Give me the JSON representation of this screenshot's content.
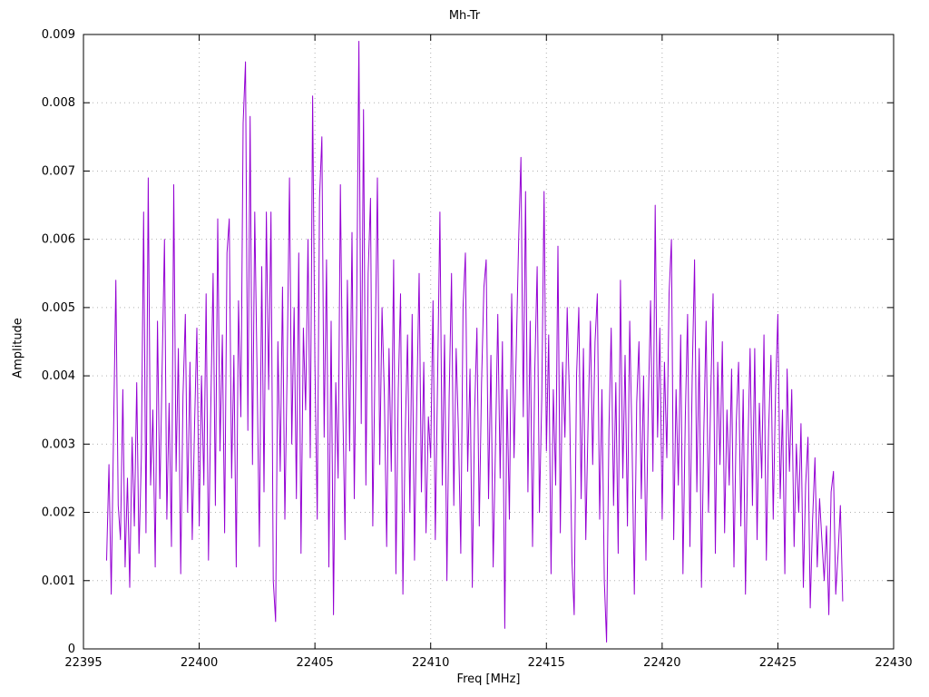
{
  "chart_data": {
    "type": "line",
    "title": "Mh-Tr",
    "xlabel": "Freq [MHz]",
    "ylabel": "Amplitude",
    "xlim": [
      22395,
      22430
    ],
    "ylim": [
      0,
      0.009
    ],
    "xticks": [
      22395,
      22400,
      22405,
      22410,
      22415,
      22420,
      22425,
      22430
    ],
    "yticks": [
      0,
      0.001,
      0.002,
      0.003,
      0.004,
      0.005,
      0.006,
      0.007,
      0.008,
      0.009
    ],
    "grid": true,
    "legend": "none",
    "line_color": "#9400d3",
    "series_name": "Mh-Tr",
    "x_start": 22396.0,
    "x_step": 0.1,
    "values": [
      0.0013,
      0.0027,
      0.0008,
      0.0032,
      0.0054,
      0.0021,
      0.0016,
      0.0038,
      0.0012,
      0.0025,
      0.0009,
      0.0031,
      0.0018,
      0.0039,
      0.0014,
      0.0028,
      0.0064,
      0.0017,
      0.0069,
      0.0024,
      0.0035,
      0.0012,
      0.0048,
      0.0022,
      0.0041,
      0.006,
      0.0019,
      0.0036,
      0.0015,
      0.0068,
      0.0026,
      0.0044,
      0.0011,
      0.0037,
      0.0049,
      0.002,
      0.0042,
      0.0016,
      0.0033,
      0.0047,
      0.0018,
      0.004,
      0.0024,
      0.0052,
      0.0013,
      0.0035,
      0.0055,
      0.0021,
      0.0063,
      0.0029,
      0.0046,
      0.0017,
      0.0058,
      0.0063,
      0.0025,
      0.0043,
      0.0012,
      0.0051,
      0.0034,
      0.0077,
      0.0086,
      0.0032,
      0.0078,
      0.0027,
      0.0064,
      0.004,
      0.0015,
      0.0056,
      0.0023,
      0.0064,
      0.0038,
      0.0064,
      0.001,
      0.0004,
      0.0045,
      0.0026,
      0.0053,
      0.0019,
      0.0041,
      0.0069,
      0.003,
      0.005,
      0.0022,
      0.0058,
      0.0014,
      0.0047,
      0.0035,
      0.006,
      0.0028,
      0.0081,
      0.0042,
      0.0019,
      0.0066,
      0.0075,
      0.0031,
      0.0057,
      0.0012,
      0.0048,
      0.0005,
      0.0039,
      0.0025,
      0.0068,
      0.0036,
      0.0016,
      0.0054,
      0.0029,
      0.0061,
      0.0022,
      0.0049,
      0.0089,
      0.0033,
      0.0079,
      0.0024,
      0.0055,
      0.0066,
      0.0018,
      0.0043,
      0.0069,
      0.0027,
      0.005,
      0.0037,
      0.0015,
      0.0044,
      0.0026,
      0.0057,
      0.0011,
      0.0038,
      0.0052,
      0.0008,
      0.0031,
      0.0046,
      0.002,
      0.0049,
      0.0013,
      0.0036,
      0.0055,
      0.0023,
      0.0042,
      0.0017,
      0.0034,
      0.0028,
      0.0051,
      0.0016,
      0.004,
      0.0064,
      0.0024,
      0.0046,
      0.001,
      0.0037,
      0.0055,
      0.0021,
      0.0044,
      0.0032,
      0.0014,
      0.005,
      0.0058,
      0.0026,
      0.0041,
      0.0009,
      0.0035,
      0.0047,
      0.0018,
      0.0039,
      0.0053,
      0.0057,
      0.0022,
      0.0043,
      0.0012,
      0.003,
      0.0049,
      0.0025,
      0.0045,
      0.0003,
      0.0038,
      0.0019,
      0.0052,
      0.0028,
      0.0044,
      0.006,
      0.0072,
      0.0034,
      0.0067,
      0.0023,
      0.0048,
      0.0015,
      0.0041,
      0.0056,
      0.002,
      0.0037,
      0.0067,
      0.0029,
      0.0046,
      0.0011,
      0.0038,
      0.0024,
      0.0059,
      0.0017,
      0.0042,
      0.0031,
      0.005,
      0.0036,
      0.0013,
      0.0005,
      0.004,
      0.005,
      0.0022,
      0.0044,
      0.0016,
      0.0033,
      0.0048,
      0.0027,
      0.0045,
      0.0052,
      0.0019,
      0.0038,
      0.001,
      0.0001,
      0.0032,
      0.0047,
      0.0021,
      0.0039,
      0.0014,
      0.0054,
      0.0025,
      0.0043,
      0.0018,
      0.0048,
      0.003,
      0.0008,
      0.0036,
      0.0045,
      0.0022,
      0.004,
      0.0013,
      0.0035,
      0.0051,
      0.0026,
      0.0065,
      0.0031,
      0.0047,
      0.0019,
      0.0042,
      0.0028,
      0.0052,
      0.006,
      0.0016,
      0.0038,
      0.0024,
      0.0046,
      0.0011,
      0.0034,
      0.0049,
      0.0015,
      0.004,
      0.0057,
      0.0023,
      0.0044,
      0.0009,
      0.0032,
      0.0048,
      0.002,
      0.0037,
      0.0052,
      0.0014,
      0.0042,
      0.0027,
      0.0045,
      0.0017,
      0.0035,
      0.0024,
      0.0041,
      0.0012,
      0.0033,
      0.0042,
      0.0018,
      0.0038,
      0.0008,
      0.0029,
      0.0044,
      0.0021,
      0.0044,
      0.0016,
      0.0036,
      0.0025,
      0.0046,
      0.0013,
      0.0032,
      0.0043,
      0.0019,
      0.0038,
      0.0049,
      0.0022,
      0.0035,
      0.0011,
      0.0041,
      0.0026,
      0.0038,
      0.0015,
      0.003,
      0.002,
      0.0033,
      0.0009,
      0.0024,
      0.0031,
      0.0006,
      0.0019,
      0.0028,
      0.0012,
      0.0022,
      0.0016,
      0.001,
      0.0018,
      0.0005,
      0.0023,
      0.0026,
      0.0008,
      0.0014,
      0.0021,
      0.0007
    ]
  }
}
